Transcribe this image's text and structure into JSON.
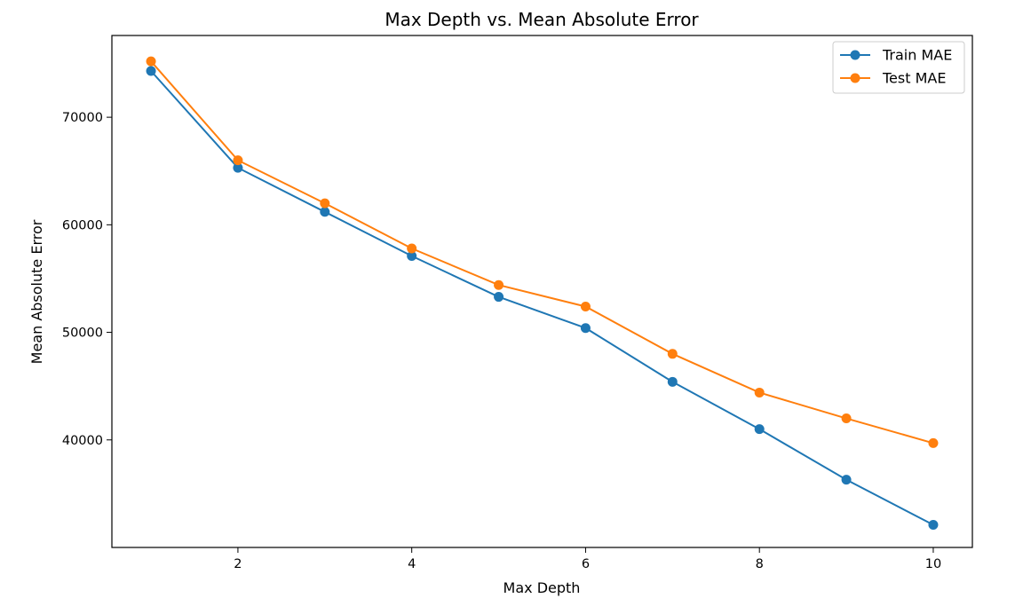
{
  "chart_data": {
    "type": "line",
    "title": "Max Depth vs. Mean Absolute Error",
    "xlabel": "Max Depth",
    "ylabel": "Mean Absolute Error",
    "x": [
      1,
      2,
      3,
      4,
      5,
      6,
      7,
      8,
      9,
      10
    ],
    "xlim": [
      0.55,
      10.45
    ],
    "ylim": [
      30000,
      77600
    ],
    "xticks": [
      2,
      4,
      6,
      8,
      10
    ],
    "yticks": [
      40000,
      50000,
      60000,
      70000
    ],
    "grid": false,
    "legend_position": "top-right",
    "series": [
      {
        "name": "Train MAE",
        "color": "#1f77b4",
        "values": [
          74300,
          65300,
          61200,
          57100,
          53300,
          50400,
          45400,
          41000,
          36300,
          32100
        ]
      },
      {
        "name": "Test MAE",
        "color": "#ff7f0e",
        "values": [
          75200,
          66000,
          62000,
          57800,
          54400,
          52400,
          48000,
          44400,
          42000,
          39700
        ]
      }
    ]
  }
}
